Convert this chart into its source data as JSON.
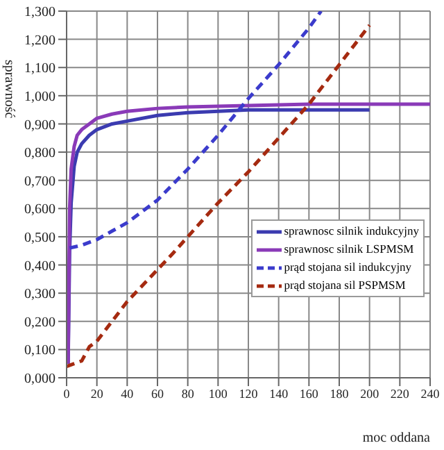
{
  "chart_data": {
    "type": "line",
    "xlabel": "moc oddana",
    "ylabel": "sprawność",
    "xlim": [
      0,
      240
    ],
    "xticks": [
      0,
      20,
      40,
      60,
      80,
      100,
      120,
      140,
      160,
      180,
      200,
      220,
      240
    ],
    "ylim": [
      0,
      1.3
    ],
    "yticks": [
      {
        "value": 0,
        "label": "0,000"
      },
      {
        "value": 0.1,
        "label": "0,100"
      },
      {
        "value": 0.2,
        "label": "0,200"
      },
      {
        "value": 0.3,
        "label": "0,300"
      },
      {
        "value": 0.4,
        "label": "0,400"
      },
      {
        "value": 0.5,
        "label": "0,500"
      },
      {
        "value": 0.6,
        "label": "0,600"
      },
      {
        "value": 0.7,
        "label": "0,700"
      },
      {
        "value": 0.8,
        "label": "0,800"
      },
      {
        "value": 0.9,
        "label": "0,900"
      },
      {
        "value": 1,
        "label": "1,000"
      },
      {
        "value": 1.1,
        "label": "1,100"
      },
      {
        "value": 1.2,
        "label": "1,200"
      },
      {
        "value": 1.3,
        "label": "1,300"
      }
    ],
    "grid": true,
    "legend": "bottom right",
    "marker": "none",
    "series": [
      {
        "name": "sprawnosc silnik indukcyjny",
        "color": "#3b3bb0",
        "line_style": "solid",
        "x": [
          1,
          2,
          3,
          5,
          7,
          10,
          15,
          20,
          30,
          40,
          60,
          80,
          100,
          120,
          160,
          200
        ],
        "values": [
          0.05,
          0.45,
          0.62,
          0.75,
          0.8,
          0.83,
          0.86,
          0.88,
          0.9,
          0.91,
          0.93,
          0.94,
          0.945,
          0.95,
          0.95,
          0.95
        ]
      },
      {
        "name": "sprawnosc silnik LSPMSM",
        "color": "#8a3ab8",
        "line_style": "solid",
        "x": [
          1,
          2,
          3,
          5,
          7,
          10,
          15,
          20,
          30,
          40,
          60,
          80,
          120,
          160,
          200,
          240
        ],
        "values": [
          0.05,
          0.6,
          0.74,
          0.82,
          0.86,
          0.88,
          0.9,
          0.92,
          0.935,
          0.945,
          0.955,
          0.96,
          0.965,
          0.97,
          0.97,
          0.97
        ]
      },
      {
        "name": "prąd stojana sil indukcyjny",
        "color": "#3b3bcc",
        "line_style": "dashed",
        "x": [
          2,
          10,
          20,
          30,
          40,
          60,
          80,
          100,
          120,
          140,
          160,
          168
        ],
        "values": [
          0.46,
          0.47,
          0.49,
          0.52,
          0.55,
          0.63,
          0.74,
          0.86,
          0.99,
          1.11,
          1.24,
          1.3
        ]
      },
      {
        "name": "prąd stojana sil PSPMSM",
        "color": "#a52a10",
        "line_style": "dashed",
        "x": [
          0,
          5,
          10,
          15,
          20,
          40,
          70,
          100,
          120,
          140,
          160,
          180,
          200
        ],
        "values": [
          0.04,
          0.05,
          0.06,
          0.11,
          0.13,
          0.27,
          0.44,
          0.62,
          0.73,
          0.85,
          0.97,
          1.11,
          1.25
        ]
      }
    ]
  }
}
